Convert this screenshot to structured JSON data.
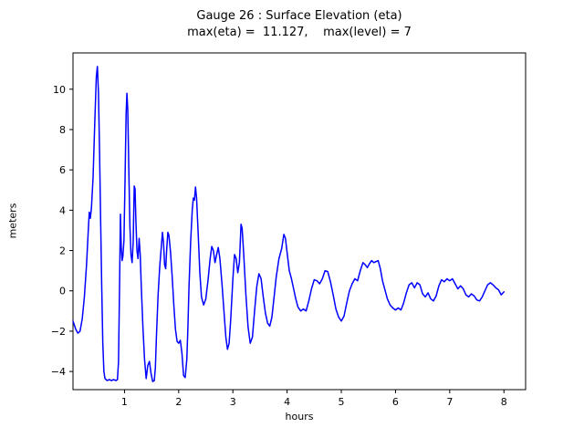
{
  "figure": {
    "title_line1": "Gauge 26 : Surface Elevation (eta)",
    "title_line2": "max(eta) =  11.127,    max(level) = 7",
    "xlabel": "hours",
    "ylabel": "meters"
  },
  "chart_data": {
    "type": "line",
    "title": "Gauge 26 : Surface Elevation (eta)",
    "subtitle": "max(eta) =  11.127,    max(level) = 7",
    "xlabel": "hours",
    "ylabel": "meters",
    "xlim": [
      0.05,
      8.4
    ],
    "ylim": [
      -4.9,
      11.8
    ],
    "xticks": [
      1,
      2,
      3,
      4,
      5,
      6,
      7,
      8
    ],
    "xtick_labels": [
      "1",
      "2",
      "3",
      "4",
      "5",
      "6",
      "7",
      "8"
    ],
    "yticks": [
      -4,
      -2,
      0,
      2,
      4,
      6,
      8,
      10
    ],
    "ytick_labels": [
      "−4",
      "−2",
      "0",
      "2",
      "4",
      "6",
      "8",
      "10"
    ],
    "grid": false,
    "legend": "none",
    "line_color": "#0000ff",
    "max_eta": 11.127,
    "max_level": 7,
    "series": [
      {
        "name": "eta",
        "points": [
          [
            0.05,
            -1.5
          ],
          [
            0.1,
            -1.9
          ],
          [
            0.14,
            -2.1
          ],
          [
            0.18,
            -2.0
          ],
          [
            0.22,
            -1.4
          ],
          [
            0.26,
            -0.3
          ],
          [
            0.3,
            1.3
          ],
          [
            0.33,
            2.9
          ],
          [
            0.35,
            3.9
          ],
          [
            0.37,
            3.6
          ],
          [
            0.39,
            4.1
          ],
          [
            0.42,
            5.6
          ],
          [
            0.45,
            8.2
          ],
          [
            0.48,
            10.6
          ],
          [
            0.5,
            11.127
          ],
          [
            0.52,
            9.8
          ],
          [
            0.54,
            6.9
          ],
          [
            0.56,
            3.5
          ],
          [
            0.58,
            0.2
          ],
          [
            0.6,
            -2.6
          ],
          [
            0.62,
            -4.0
          ],
          [
            0.64,
            -4.35
          ],
          [
            0.68,
            -4.45
          ],
          [
            0.72,
            -4.4
          ],
          [
            0.76,
            -4.45
          ],
          [
            0.8,
            -4.4
          ],
          [
            0.84,
            -4.45
          ],
          [
            0.87,
            -4.4
          ],
          [
            0.89,
            -3.5
          ],
          [
            0.91,
            0.5
          ],
          [
            0.925,
            3.8
          ],
          [
            0.94,
            2.2
          ],
          [
            0.955,
            1.5
          ],
          [
            0.97,
            1.7
          ],
          [
            0.99,
            2.5
          ],
          [
            1.01,
            5.5
          ],
          [
            1.03,
            8.8
          ],
          [
            1.045,
            9.8
          ],
          [
            1.06,
            9.0
          ],
          [
            1.08,
            6.0
          ],
          [
            1.1,
            3.2
          ],
          [
            1.12,
            1.8
          ],
          [
            1.14,
            1.4
          ],
          [
            1.16,
            2.4
          ],
          [
            1.18,
            5.2
          ],
          [
            1.195,
            5.05
          ],
          [
            1.21,
            3.5
          ],
          [
            1.23,
            2.0
          ],
          [
            1.25,
            1.6
          ],
          [
            1.27,
            2.6
          ],
          [
            1.29,
            1.8
          ],
          [
            1.31,
            0.2
          ],
          [
            1.34,
            -1.8
          ],
          [
            1.37,
            -3.4
          ],
          [
            1.4,
            -4.35
          ],
          [
            1.43,
            -3.7
          ],
          [
            1.46,
            -3.5
          ],
          [
            1.49,
            -4.1
          ],
          [
            1.52,
            -4.5
          ],
          [
            1.55,
            -4.45
          ],
          [
            1.57,
            -3.8
          ],
          [
            1.59,
            -2.2
          ],
          [
            1.62,
            -0.2
          ],
          [
            1.65,
            1.2
          ],
          [
            1.68,
            2.2
          ],
          [
            1.7,
            2.9
          ],
          [
            1.72,
            2.4
          ],
          [
            1.74,
            1.3
          ],
          [
            1.76,
            1.1
          ],
          [
            1.78,
            2.1
          ],
          [
            1.8,
            2.9
          ],
          [
            1.82,
            2.75
          ],
          [
            1.85,
            1.9
          ],
          [
            1.88,
            0.7
          ],
          [
            1.91,
            -0.7
          ],
          [
            1.94,
            -1.9
          ],
          [
            1.97,
            -2.5
          ],
          [
            2.0,
            -2.6
          ],
          [
            2.03,
            -2.45
          ],
          [
            2.06,
            -3.1
          ],
          [
            2.09,
            -4.2
          ],
          [
            2.12,
            -4.3
          ],
          [
            2.15,
            -3.4
          ],
          [
            2.17,
            -1.8
          ],
          [
            2.19,
            0.2
          ],
          [
            2.22,
            2.4
          ],
          [
            2.25,
            4.0
          ],
          [
            2.27,
            4.6
          ],
          [
            2.29,
            4.5
          ],
          [
            2.31,
            5.15
          ],
          [
            2.33,
            4.6
          ],
          [
            2.36,
            2.8
          ],
          [
            2.39,
            0.9
          ],
          [
            2.42,
            -0.3
          ],
          [
            2.46,
            -0.7
          ],
          [
            2.5,
            -0.4
          ],
          [
            2.54,
            0.5
          ],
          [
            2.58,
            1.6
          ],
          [
            2.61,
            2.2
          ],
          [
            2.64,
            2.0
          ],
          [
            2.67,
            1.4
          ],
          [
            2.7,
            1.8
          ],
          [
            2.73,
            2.15
          ],
          [
            2.76,
            1.6
          ],
          [
            2.8,
            0.3
          ],
          [
            2.84,
            -1.2
          ],
          [
            2.87,
            -2.3
          ],
          [
            2.9,
            -2.9
          ],
          [
            2.93,
            -2.6
          ],
          [
            2.96,
            -1.4
          ],
          [
            3.0,
            0.6
          ],
          [
            3.03,
            1.8
          ],
          [
            3.06,
            1.6
          ],
          [
            3.09,
            0.9
          ],
          [
            3.12,
            1.4
          ],
          [
            3.15,
            3.3
          ],
          [
            3.17,
            3.1
          ],
          [
            3.2,
            1.8
          ],
          [
            3.24,
            -0.2
          ],
          [
            3.28,
            -1.8
          ],
          [
            3.32,
            -2.6
          ],
          [
            3.36,
            -2.3
          ],
          [
            3.4,
            -1.0
          ],
          [
            3.44,
            0.2
          ],
          [
            3.48,
            0.85
          ],
          [
            3.52,
            0.6
          ],
          [
            3.56,
            -0.3
          ],
          [
            3.6,
            -1.1
          ],
          [
            3.64,
            -1.6
          ],
          [
            3.68,
            -1.75
          ],
          [
            3.72,
            -1.3
          ],
          [
            3.76,
            -0.3
          ],
          [
            3.8,
            0.7
          ],
          [
            3.85,
            1.6
          ],
          [
            3.9,
            2.1
          ],
          [
            3.94,
            2.8
          ],
          [
            3.97,
            2.6
          ],
          [
            4.0,
            1.9
          ],
          [
            4.04,
            1.0
          ],
          [
            4.08,
            0.6
          ],
          [
            4.12,
            0.1
          ],
          [
            4.16,
            -0.4
          ],
          [
            4.2,
            -0.8
          ],
          [
            4.25,
            -1.0
          ],
          [
            4.3,
            -0.9
          ],
          [
            4.35,
            -1.0
          ],
          [
            4.4,
            -0.5
          ],
          [
            4.45,
            0.1
          ],
          [
            4.5,
            0.55
          ],
          [
            4.55,
            0.5
          ],
          [
            4.6,
            0.35
          ],
          [
            4.65,
            0.6
          ],
          [
            4.7,
            1.0
          ],
          [
            4.75,
            0.95
          ],
          [
            4.8,
            0.45
          ],
          [
            4.85,
            -0.2
          ],
          [
            4.9,
            -0.9
          ],
          [
            4.95,
            -1.3
          ],
          [
            5.0,
            -1.5
          ],
          [
            5.05,
            -1.25
          ],
          [
            5.1,
            -0.6
          ],
          [
            5.15,
            0.0
          ],
          [
            5.2,
            0.35
          ],
          [
            5.25,
            0.6
          ],
          [
            5.3,
            0.5
          ],
          [
            5.35,
            1.0
          ],
          [
            5.4,
            1.4
          ],
          [
            5.44,
            1.3
          ],
          [
            5.48,
            1.15
          ],
          [
            5.52,
            1.35
          ],
          [
            5.56,
            1.5
          ],
          [
            5.6,
            1.4
          ],
          [
            5.64,
            1.45
          ],
          [
            5.68,
            1.5
          ],
          [
            5.72,
            1.1
          ],
          [
            5.76,
            0.5
          ],
          [
            5.8,
            0.1
          ],
          [
            5.85,
            -0.4
          ],
          [
            5.9,
            -0.7
          ],
          [
            5.95,
            -0.85
          ],
          [
            6.0,
            -0.95
          ],
          [
            6.05,
            -0.85
          ],
          [
            6.1,
            -0.95
          ],
          [
            6.15,
            -0.6
          ],
          [
            6.2,
            -0.1
          ],
          [
            6.25,
            0.3
          ],
          [
            6.3,
            0.4
          ],
          [
            6.35,
            0.15
          ],
          [
            6.4,
            0.4
          ],
          [
            6.45,
            0.3
          ],
          [
            6.5,
            -0.15
          ],
          [
            6.55,
            -0.3
          ],
          [
            6.6,
            -0.1
          ],
          [
            6.65,
            -0.4
          ],
          [
            6.7,
            -0.5
          ],
          [
            6.75,
            -0.25
          ],
          [
            6.8,
            0.25
          ],
          [
            6.85,
            0.55
          ],
          [
            6.9,
            0.45
          ],
          [
            6.95,
            0.6
          ],
          [
            7.0,
            0.5
          ],
          [
            7.05,
            0.6
          ],
          [
            7.1,
            0.35
          ],
          [
            7.15,
            0.1
          ],
          [
            7.2,
            0.25
          ],
          [
            7.25,
            0.1
          ],
          [
            7.3,
            -0.2
          ],
          [
            7.35,
            -0.3
          ],
          [
            7.4,
            -0.15
          ],
          [
            7.45,
            -0.25
          ],
          [
            7.5,
            -0.45
          ],
          [
            7.55,
            -0.5
          ],
          [
            7.6,
            -0.3
          ],
          [
            7.65,
            0.0
          ],
          [
            7.7,
            0.3
          ],
          [
            7.75,
            0.4
          ],
          [
            7.8,
            0.3
          ],
          [
            7.85,
            0.15
          ],
          [
            7.9,
            0.05
          ],
          [
            7.95,
            -0.2
          ],
          [
            8.0,
            -0.05
          ]
        ]
      }
    ]
  }
}
